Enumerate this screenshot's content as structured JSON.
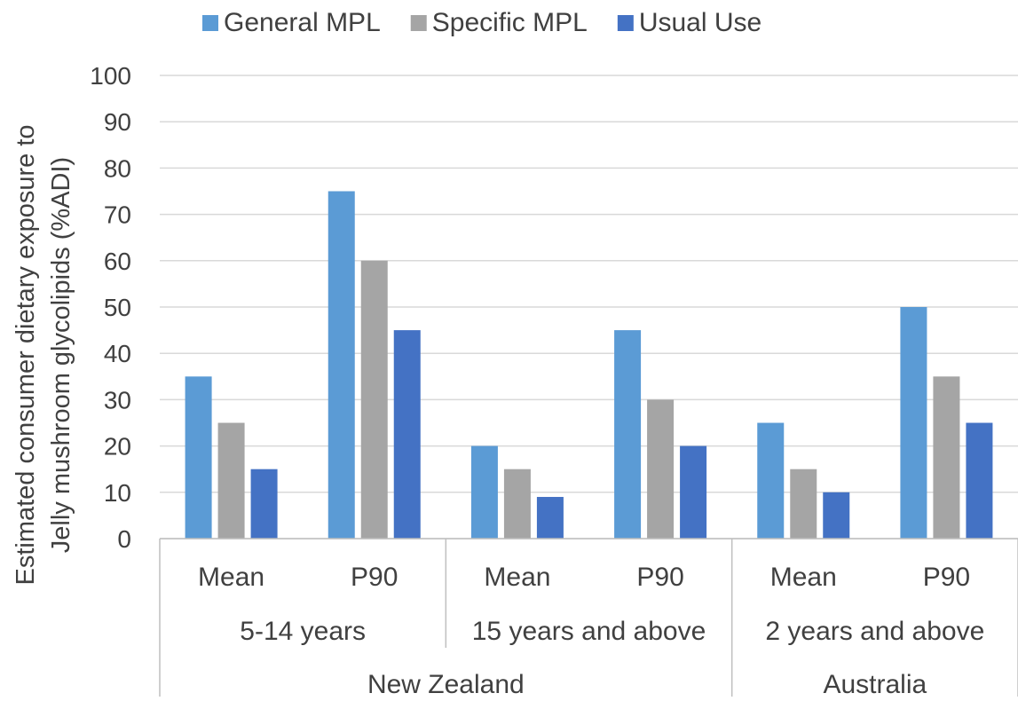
{
  "chart_data": {
    "type": "bar",
    "categories": [
      {
        "label": "Mean",
        "group": "5-14 years",
        "country": "New Zealand"
      },
      {
        "label": "P90",
        "group": "5-14 years",
        "country": "New Zealand"
      },
      {
        "label": "Mean",
        "group": "15 years and above",
        "country": "New Zealand"
      },
      {
        "label": "P90",
        "group": "15 years and above",
        "country": "New Zealand"
      },
      {
        "label": "Mean",
        "group": "2 years and above",
        "country": "Australia"
      },
      {
        "label": "P90",
        "group": "2 years and above",
        "country": "Australia"
      }
    ],
    "groups": [
      "5-14 years",
      "15 years and above",
      "2 years and above"
    ],
    "countries": [
      "New Zealand",
      "Australia"
    ],
    "series": [
      {
        "name": "General MPL",
        "color": "#5b9bd5",
        "values": [
          35,
          75,
          20,
          45,
          25,
          50
        ]
      },
      {
        "name": "Specific MPL",
        "color": "#a5a5a5",
        "values": [
          25,
          60,
          15,
          30,
          15,
          35
        ]
      },
      {
        "name": "Usual Use",
        "color": "#4472c4",
        "values": [
          15,
          45,
          9,
          20,
          10,
          25
        ]
      }
    ],
    "ylabel_line1": "Estimated consumer dietary exposure to",
    "ylabel_line2": "Jelly mushroom glycolipids (%ADI)",
    "ylim": [
      0,
      100
    ],
    "yticks": [
      "0",
      "10",
      "20",
      "30",
      "40",
      "50",
      "60",
      "70",
      "80",
      "90",
      "100"
    ],
    "grid": true,
    "legend_position": "top"
  }
}
